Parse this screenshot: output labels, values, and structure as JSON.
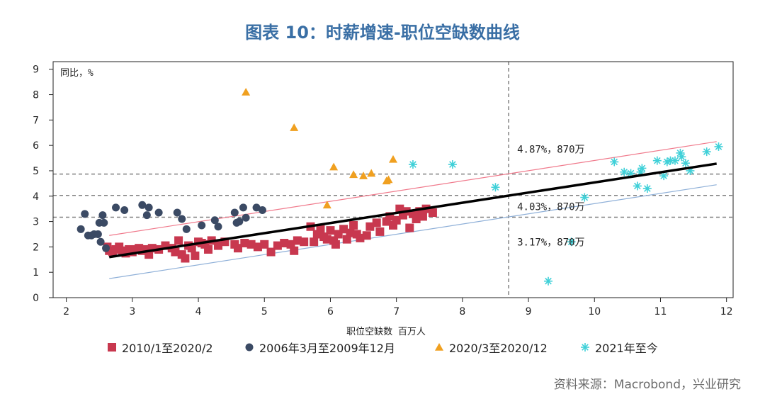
{
  "title": "图表 10：时薪增速-职位空缺数曲线",
  "source": "资料来源：Macrobond，兴业研究",
  "colors": {
    "series_2010": "#c8384f",
    "series_2006": "#3b4a64",
    "series_2020": "#f0a020",
    "series_2021": "#3fd0d8",
    "fit_line": "#000000",
    "upper_band": "#f07a8c",
    "lower_band": "#8fb0d8",
    "ref_lines": "#808080"
  },
  "chart_data": {
    "type": "scatter",
    "xlabel": "职位空缺数 百万人",
    "ylabel": "同比，%",
    "xlim": [
      1.8,
      12.1
    ],
    "ylim": [
      0,
      9.3
    ],
    "xticks": [
      2,
      3,
      4,
      5,
      6,
      7,
      8,
      9,
      10,
      11,
      12
    ],
    "yticks": [
      0,
      1,
      2,
      3,
      4,
      5,
      6,
      7,
      8,
      9
    ],
    "legend_position": "bottom",
    "series": [
      {
        "name": "2010/1至2020/2",
        "marker": "square",
        "points": [
          [
            2.62,
            2.0
          ],
          [
            2.65,
            1.85
          ],
          [
            2.7,
            1.8
          ],
          [
            2.75,
            1.9
          ],
          [
            2.8,
            2.0
          ],
          [
            2.85,
            1.85
          ],
          [
            2.9,
            1.75
          ],
          [
            2.95,
            1.9
          ],
          [
            3.0,
            1.8
          ],
          [
            3.05,
            1.9
          ],
          [
            3.1,
            1.95
          ],
          [
            3.15,
            1.85
          ],
          [
            3.2,
            1.9
          ],
          [
            3.25,
            1.7
          ],
          [
            3.3,
            1.95
          ],
          [
            3.4,
            1.9
          ],
          [
            3.5,
            2.05
          ],
          [
            3.6,
            1.95
          ],
          [
            3.65,
            1.8
          ],
          [
            3.7,
            2.25
          ],
          [
            3.75,
            1.7
          ],
          [
            3.8,
            1.55
          ],
          [
            3.85,
            2.05
          ],
          [
            3.9,
            1.95
          ],
          [
            3.95,
            1.65
          ],
          [
            4.0,
            2.2
          ],
          [
            4.05,
            2.15
          ],
          [
            4.1,
            2.1
          ],
          [
            4.15,
            1.9
          ],
          [
            4.2,
            2.25
          ],
          [
            4.3,
            2.05
          ],
          [
            4.4,
            2.2
          ],
          [
            4.55,
            2.1
          ],
          [
            4.6,
            1.95
          ],
          [
            4.7,
            2.15
          ],
          [
            4.8,
            2.1
          ],
          [
            4.9,
            2.0
          ],
          [
            5.0,
            2.1
          ],
          [
            5.1,
            1.8
          ],
          [
            5.2,
            2.05
          ],
          [
            5.3,
            2.15
          ],
          [
            5.4,
            2.1
          ],
          [
            5.45,
            1.85
          ],
          [
            5.5,
            2.25
          ],
          [
            5.6,
            2.2
          ],
          [
            5.7,
            2.8
          ],
          [
            5.75,
            2.2
          ],
          [
            5.8,
            2.5
          ],
          [
            5.85,
            2.7
          ],
          [
            5.9,
            2.4
          ],
          [
            5.95,
            2.3
          ],
          [
            6.0,
            2.65
          ],
          [
            6.05,
            2.25
          ],
          [
            6.08,
            2.1
          ],
          [
            6.12,
            2.5
          ],
          [
            6.2,
            2.7
          ],
          [
            6.25,
            2.3
          ],
          [
            6.3,
            2.55
          ],
          [
            6.35,
            2.85
          ],
          [
            6.4,
            2.5
          ],
          [
            6.45,
            2.35
          ],
          [
            6.55,
            2.45
          ],
          [
            6.6,
            2.8
          ],
          [
            6.7,
            2.95
          ],
          [
            6.75,
            2.6
          ],
          [
            6.85,
            3.0
          ],
          [
            6.9,
            3.2
          ],
          [
            6.95,
            2.85
          ],
          [
            7.0,
            3.05
          ],
          [
            7.05,
            3.5
          ],
          [
            7.1,
            3.25
          ],
          [
            7.15,
            3.4
          ],
          [
            7.2,
            2.75
          ],
          [
            7.25,
            3.3
          ],
          [
            7.3,
            3.1
          ],
          [
            7.35,
            3.4
          ],
          [
            7.4,
            3.2
          ],
          [
            7.45,
            3.5
          ],
          [
            7.55,
            3.35
          ]
        ]
      },
      {
        "name": "2006年3月至2009年12月",
        "marker": "circle",
        "points": [
          [
            2.22,
            2.7
          ],
          [
            2.28,
            3.3
          ],
          [
            2.33,
            2.45
          ],
          [
            2.38,
            2.45
          ],
          [
            2.42,
            2.5
          ],
          [
            2.48,
            2.5
          ],
          [
            2.5,
            2.95
          ],
          [
            2.52,
            2.2
          ],
          [
            2.55,
            3.25
          ],
          [
            2.57,
            2.95
          ],
          [
            2.6,
            1.95
          ],
          [
            2.75,
            3.55
          ],
          [
            2.88,
            3.45
          ],
          [
            3.15,
            3.65
          ],
          [
            3.22,
            3.25
          ],
          [
            3.25,
            3.55
          ],
          [
            3.4,
            3.35
          ],
          [
            3.68,
            3.35
          ],
          [
            3.75,
            3.1
          ],
          [
            3.82,
            2.7
          ],
          [
            4.05,
            2.85
          ],
          [
            4.25,
            3.05
          ],
          [
            4.3,
            2.8
          ],
          [
            4.55,
            3.35
          ],
          [
            4.58,
            2.95
          ],
          [
            4.62,
            3.0
          ],
          [
            4.68,
            3.55
          ],
          [
            4.72,
            3.15
          ],
          [
            4.88,
            3.55
          ],
          [
            4.97,
            3.45
          ]
        ]
      },
      {
        "name": "2020/3至2020/12",
        "marker": "triangle",
        "points": [
          [
            4.72,
            8.1
          ],
          [
            5.45,
            6.7
          ],
          [
            5.95,
            3.65
          ],
          [
            6.05,
            5.15
          ],
          [
            6.35,
            4.85
          ],
          [
            6.5,
            4.8
          ],
          [
            6.62,
            4.9
          ],
          [
            6.85,
            4.6
          ],
          [
            6.88,
            4.65
          ],
          [
            6.95,
            5.45
          ]
        ]
      },
      {
        "name": "2021年至今",
        "marker": "asterisk",
        "points": [
          [
            7.25,
            5.25
          ],
          [
            7.85,
            5.25
          ],
          [
            8.5,
            4.35
          ],
          [
            9.3,
            0.65
          ],
          [
            9.65,
            2.2
          ],
          [
            9.85,
            3.95
          ],
          [
            10.3,
            5.35
          ],
          [
            10.45,
            4.95
          ],
          [
            10.55,
            4.9
          ],
          [
            10.65,
            4.4
          ],
          [
            10.7,
            4.95
          ],
          [
            10.72,
            5.1
          ],
          [
            10.8,
            4.3
          ],
          [
            10.95,
            5.4
          ],
          [
            11.05,
            4.8
          ],
          [
            11.1,
            5.35
          ],
          [
            11.15,
            5.4
          ],
          [
            11.22,
            5.4
          ],
          [
            11.3,
            5.7
          ],
          [
            11.32,
            5.55
          ],
          [
            11.38,
            5.3
          ],
          [
            11.45,
            5.0
          ],
          [
            11.7,
            5.75
          ],
          [
            11.88,
            5.95
          ]
        ]
      }
    ],
    "fit_line": {
      "x": [
        2.65,
        11.85
      ],
      "y": [
        1.6,
        5.28
      ]
    },
    "upper_band": {
      "x": [
        2.65,
        11.85
      ],
      "y": [
        2.45,
        6.15
      ]
    },
    "lower_band": {
      "x": [
        2.65,
        11.85
      ],
      "y": [
        0.75,
        4.45
      ]
    },
    "vertical_ref_x": 8.7,
    "horizontal_refs": [
      {
        "y": 4.87,
        "label": "4.87%，870万"
      },
      {
        "y": 4.03,
        "label": "4.03%，870万"
      },
      {
        "y": 3.17,
        "label": "3.17%，870万"
      }
    ]
  }
}
